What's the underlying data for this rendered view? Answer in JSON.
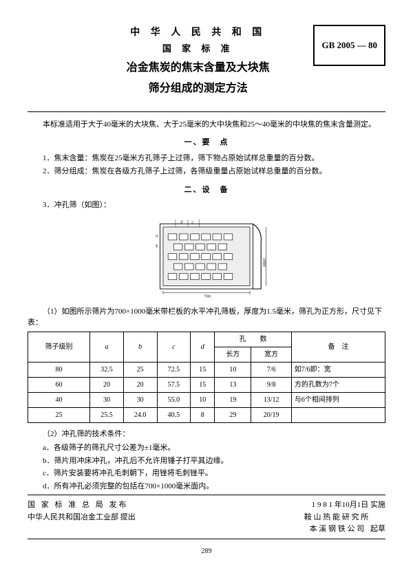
{
  "header": {
    "country": "中 华 人 民 共 和 国",
    "standard": "国 家 标 准",
    "title1": "冶金焦炭的焦末含量及大块焦",
    "title2": "筛分组成的测定方法",
    "code": "GB 2005 — 80"
  },
  "scope": "本标准适用于大于40毫米的大块焦、大于25毫米的大中块焦和25～40毫米的中块焦的焦末含量测定。",
  "section1": {
    "heading": "一、要　点",
    "item1": "1．焦末含量：焦炭在25毫米方孔筛子上过筛，筛下物占原始试样总重量的百分数。",
    "item2": "2．筛分组成：焦炭在各级方孔筛子上过筛，各筛级重量占原始试样总重量的百分数。"
  },
  "section2": {
    "heading": "二、设　备",
    "item3": "3．冲孔筛（如图）：",
    "caption1": "（1）如图所示筛片为700×1000毫米带栏板的水平冲孔筛板，厚度为1.5毫米，筛孔为正方形，尺寸见下表：",
    "table": {
      "columns": [
        {
          "label": "筛子级别",
          "rowspan": 2
        },
        {
          "label": "a",
          "rowspan": 2
        },
        {
          "label": "b",
          "rowspan": 2
        },
        {
          "label": "c",
          "rowspan": 2
        },
        {
          "label": "d",
          "rowspan": 2
        },
        {
          "label": "孔　　数",
          "colspan": 2
        },
        {
          "label": "备　注",
          "rowspan": 2
        }
      ],
      "subcolumns": [
        "长方",
        "宽方"
      ],
      "rows": [
        [
          "80",
          "32.5",
          "25",
          "72.5",
          "15",
          "10",
          "7/6",
          "如7/6即：宽"
        ],
        [
          "60",
          "20",
          "20",
          "57.5",
          "15",
          "13",
          "9/8",
          "方的孔数为7个"
        ],
        [
          "40",
          "30",
          "30",
          "55.0",
          "10",
          "19",
          "13/12",
          "与6个相间排列"
        ],
        [
          "25",
          "25.5",
          "24.0",
          "40.5",
          "8",
          "29",
          "20/19",
          ""
        ]
      ]
    },
    "caption2": "（2）冲孔筛的技术条件：",
    "tech": {
      "a": "a．各级筛子的筛孔尺寸公差为±1毫米。",
      "b": "b．筛片用冲床冲孔，冲孔后不允许用锤子打平其边缘。",
      "c": "c．筛片安装要将冲孔毛刺朝下，用锉将毛刺锉平。",
      "d": "d．所有冲孔必须完整的包括在700×1000毫米面内。"
    }
  },
  "footer": {
    "left1": "国 家 标 准 总 局  发布",
    "left2": "中华人民共和国冶金工业部  提出",
    "right1": "1 9 8 1 年10月1日  实施",
    "right2": "鞍 山 热 能 研 究 所",
    "right3": "本 溪 钢 铁 公 司",
    "right_suffix": "起草"
  },
  "page_number": "289",
  "diagram_labels": {
    "a": "a",
    "b": "b",
    "c": "c",
    "d": "d",
    "w": "700",
    "h": "1000"
  }
}
